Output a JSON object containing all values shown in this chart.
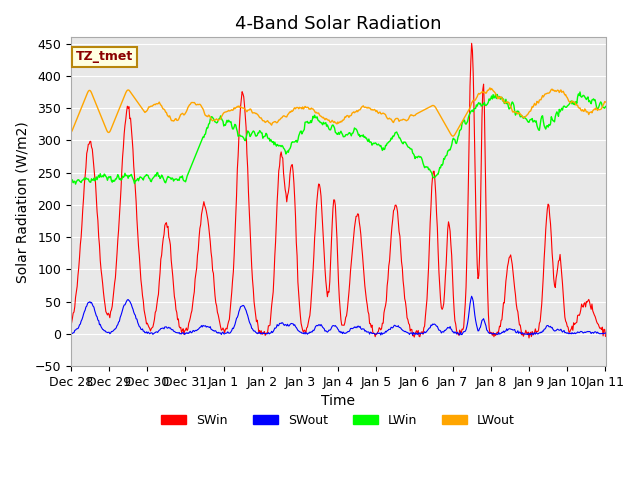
{
  "title": "4-Band Solar Radiation",
  "xlabel": "Time",
  "ylabel": "Solar Radiation (W/m2)",
  "ylim": [
    -50,
    460
  ],
  "annotation": "TZ_tmet",
  "plot_bg": "#e8e8e8",
  "xtick_labels": [
    "Dec 28",
    "Dec 29",
    "Dec 30",
    "Dec 31",
    "Jan 1",
    "Jan 2",
    "Jan 3",
    "Jan 4",
    "Jan 5",
    "Jan 6",
    "Jan 7",
    "Jan 8",
    "Jan 9",
    "Jan 10",
    "Jan 11"
  ],
  "title_fontsize": 13,
  "axis_label_fontsize": 10,
  "tick_fontsize": 9
}
